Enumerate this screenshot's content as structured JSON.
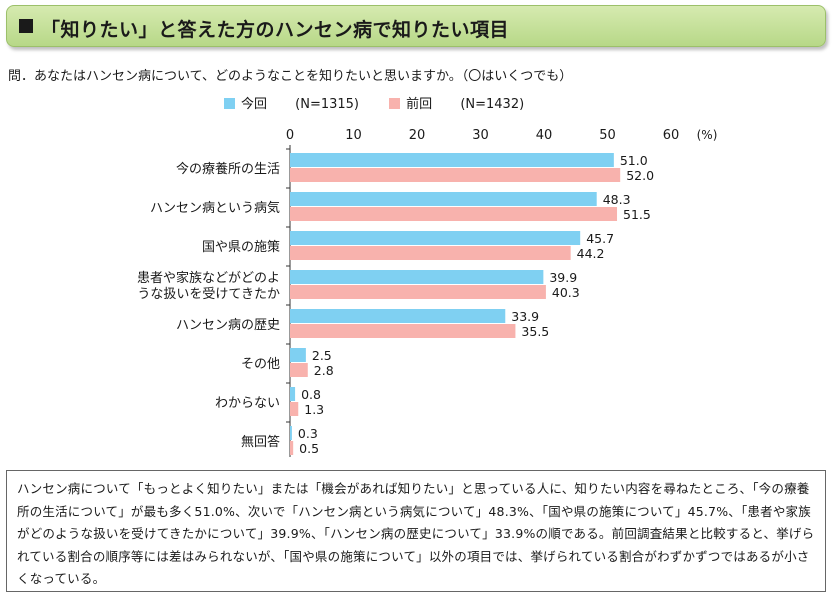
{
  "header": {
    "title": "「知りたい」と答えた方のハンセン病で知りたい項目"
  },
  "question": "問．あなたはハンセン病について、どのようなことを知りたいと思いますか。（〇はいくつでも）",
  "colors": {
    "current": "#7fd0f2",
    "previous": "#f8b2ad",
    "header_bg": "#c6e09e"
  },
  "chart_data": {
    "type": "bar",
    "orientation": "horizontal",
    "categories": [
      "今の療養所の生活",
      "ハンセン病という病気",
      "国や県の施策",
      "患者や家族などがどのような扱いを受けてきたか",
      "ハンセン病の歴史",
      "その他",
      "わからない",
      "無回答"
    ],
    "category_lines": [
      [
        "今の療養所の生活"
      ],
      [
        "ハンセン病という病気"
      ],
      [
        "国や県の施策"
      ],
      [
        "患者や家族などがどのよ",
        "うな扱いを受けてきたか"
      ],
      [
        "ハンセン病の歴史"
      ],
      [
        "その他"
      ],
      [
        "わからない"
      ],
      [
        "無回答"
      ]
    ],
    "series": [
      {
        "name": "今回",
        "n_label": "(N=1315)",
        "values": [
          51.0,
          48.3,
          45.7,
          39.9,
          33.9,
          2.5,
          0.8,
          0.3
        ]
      },
      {
        "name": "前回",
        "n_label": "(N=1432)",
        "values": [
          52.0,
          51.5,
          44.2,
          40.3,
          35.5,
          2.8,
          1.3,
          0.5
        ]
      }
    ],
    "xlim": [
      0,
      60
    ],
    "ticks": [
      0,
      10,
      20,
      30,
      40,
      50,
      60
    ],
    "unit_label": "(%)",
    "grid": false,
    "legend_position": "top"
  },
  "note": "ハンセン病について「もっとよく知りたい」または「機会があれば知りたい」と思っている人に、知りたい内容を尋ねたところ、「今の療養所の生活について」が最も多く51.0%、次いで「ハンセン病という病気について」48.3%、「国や県の施策について」45.7%、「患者や家族がどのような扱いを受けてきたかについて」39.9%、「ハンセン病の歴史について」33.9%の順である。前回調査結果と比較すると、挙げられている割合の順序等には差はみられないが、「国や県の施策について」以外の項目では、挙げられている割合がわずかずつではあるが小さくなっている。"
}
